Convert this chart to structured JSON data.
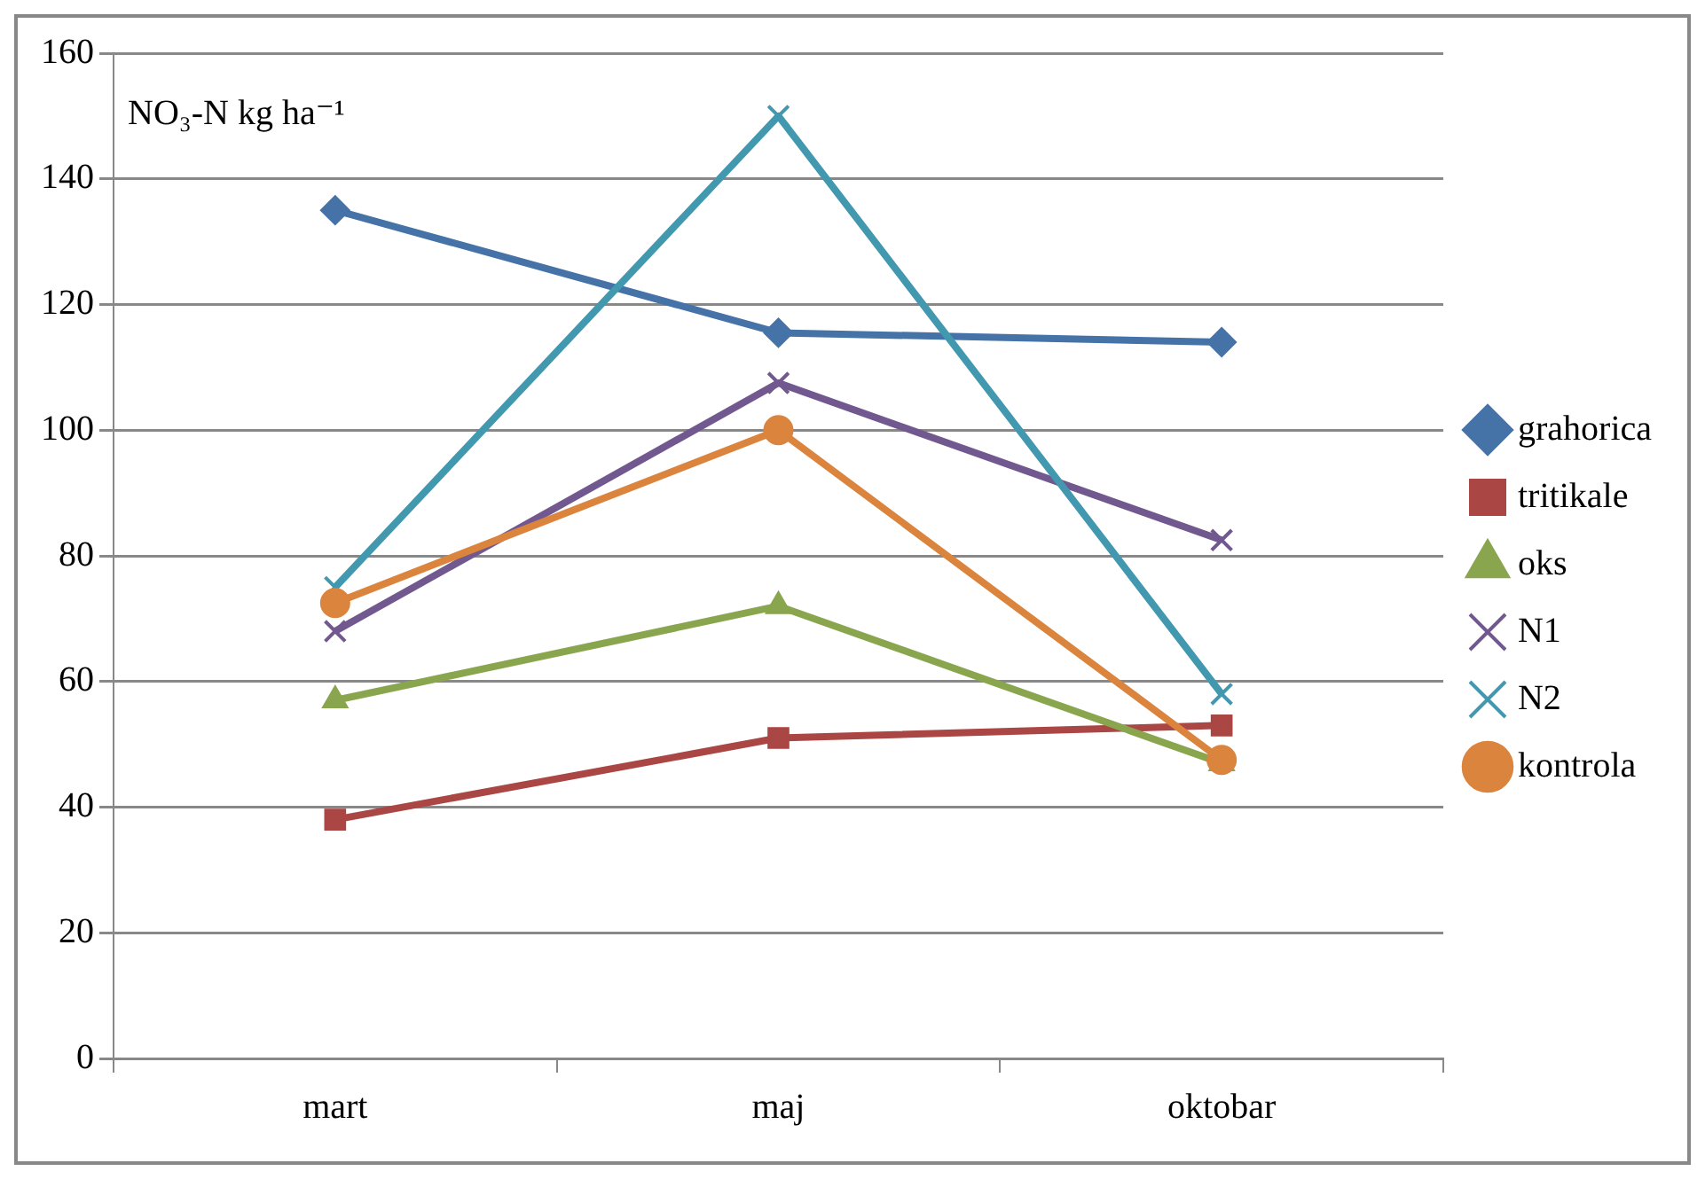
{
  "chart_data": {
    "type": "line",
    "ylabel": "NO₃-N kg ha⁻¹",
    "categories": [
      "mart",
      "maj",
      "oktobar"
    ],
    "ylim": [
      0,
      160
    ],
    "yticks": [
      0,
      20,
      40,
      60,
      80,
      100,
      120,
      140,
      160
    ],
    "grid": "y",
    "legend": "right",
    "series": [
      {
        "name": "grahorica",
        "color": "#4572a7",
        "marker": "diamond",
        "values": [
          135,
          115.5,
          114
        ]
      },
      {
        "name": "tritikale",
        "color": "#aa4643",
        "marker": "square",
        "values": [
          38,
          51,
          53
        ]
      },
      {
        "name": "oks",
        "color": "#89a54e",
        "marker": "triangle",
        "values": [
          57,
          72,
          47
        ]
      },
      {
        "name": "N1",
        "color": "#71588f",
        "marker": "cross",
        "values": [
          68,
          107.5,
          82.5
        ]
      },
      {
        "name": "N2",
        "color": "#4198af",
        "marker": "cross",
        "values": [
          75,
          150,
          58
        ]
      },
      {
        "name": "kontrola",
        "color": "#db843d",
        "marker": "circle",
        "values": [
          72.5,
          100,
          47.5
        ]
      }
    ]
  }
}
